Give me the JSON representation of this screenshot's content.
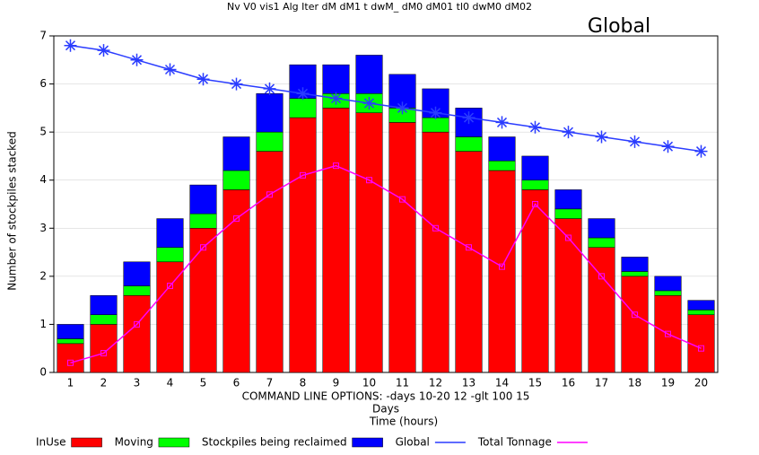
{
  "chart_data": {
    "type": "bar",
    "title": "Global",
    "header": "Nv  V0  vis1  Alg  Iter  dM  dM1  t  dwM_  dM0  dM01  tl0  dwM0  dM02",
    "annotations": [
      "COMMAND LINE OPTIONS: -days 10-20 12 -glt 100 15",
      "Days",
      "Time (hours)"
    ],
    "y_label": "Number of stockpiles stacked",
    "categories": [
      "1",
      "2",
      "3",
      "4",
      "5",
      "6",
      "7",
      "8",
      "9",
      "10",
      "11",
      "12",
      "13",
      "14",
      "15",
      "16",
      "17",
      "18",
      "19",
      "20"
    ],
    "series": [
      {
        "name": "InUse",
        "color": "#ff0000",
        "type": "bar",
        "values": [
          0.6,
          1.0,
          1.6,
          2.3,
          3.0,
          3.8,
          4.6,
          5.3,
          5.5,
          5.4,
          5.2,
          5.0,
          4.6,
          4.2,
          3.8,
          3.2,
          2.6,
          2.0,
          1.6,
          1.2
        ]
      },
      {
        "name": "Moving",
        "color": "#00ff00",
        "type": "bar",
        "values": [
          0.1,
          0.2,
          0.2,
          0.3,
          0.3,
          0.4,
          0.4,
          0.4,
          0.3,
          0.4,
          0.3,
          0.3,
          0.3,
          0.2,
          0.2,
          0.2,
          0.2,
          0.1,
          0.1,
          0.1
        ]
      },
      {
        "name": "Stockpiles being reclaimed",
        "color": "#0000ff",
        "type": "bar",
        "values": [
          0.3,
          0.4,
          0.5,
          0.6,
          0.6,
          0.7,
          0.8,
          0.7,
          0.6,
          0.8,
          0.7,
          0.6,
          0.6,
          0.5,
          0.5,
          0.4,
          0.4,
          0.3,
          0.3,
          0.2
        ]
      },
      {
        "name": "Global",
        "color": "#2a3cff",
        "type": "line",
        "marker": "star",
        "values": [
          6.8,
          6.7,
          6.5,
          6.3,
          6.1,
          6.0,
          5.9,
          5.8,
          5.7,
          5.6,
          5.5,
          5.4,
          5.3,
          5.2,
          5.1,
          5.0,
          4.9,
          4.8,
          4.7,
          4.6
        ]
      },
      {
        "name": "Total Tonnage",
        "color": "#ff00ff",
        "type": "line",
        "marker": "square",
        "values": [
          0.2,
          0.4,
          1.0,
          1.8,
          2.6,
          3.2,
          3.7,
          4.1,
          4.3,
          4.0,
          3.6,
          3.0,
          2.6,
          2.2,
          3.5,
          2.8,
          2.0,
          1.2,
          0.8,
          0.5
        ]
      }
    ],
    "ylim": [
      0,
      7
    ],
    "yticks": [
      0,
      1,
      2,
      3,
      4,
      5,
      6,
      7
    ],
    "grid": true,
    "legend": "bottom"
  }
}
